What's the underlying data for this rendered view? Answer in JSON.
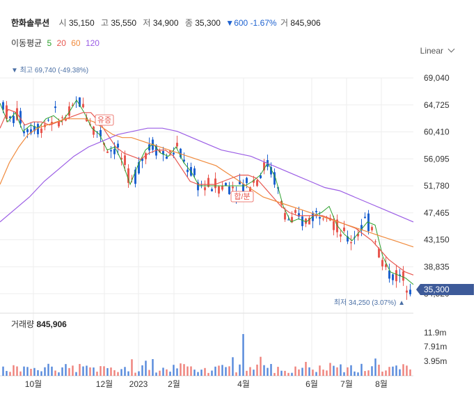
{
  "header": {
    "name": "한화솔루션",
    "open_label": "시",
    "open": "35,150",
    "high_label": "고",
    "high": "35,550",
    "low_label": "저",
    "low": "34,900",
    "close_label": "종",
    "close": "35,300",
    "change_icon": "triangle-down-icon",
    "change": "600",
    "change_pct": "-1.67%",
    "volume_label": "거",
    "volume": "845,906"
  },
  "moving_average": {
    "label": "이동평균",
    "periods": [
      {
        "label": "5",
        "color": "#2ca02c"
      },
      {
        "label": "20",
        "color": "#e8574f"
      },
      {
        "label": "60",
        "color": "#f08a3c"
      },
      {
        "label": "120",
        "color": "#9b5de5"
      }
    ]
  },
  "scale_selector": "Linear",
  "colors": {
    "up": "#e8574f",
    "down": "#1e62d0",
    "ma5": "#2ca02c",
    "ma20": "#e8574f",
    "ma60": "#f08a3c",
    "ma120": "#9b5de5",
    "current_badge": "#3d5a99",
    "grid": "#eeeeee"
  },
  "annotations": {
    "high_marker": "▼ 최고 69,740 (-49.38%)",
    "low_marker": "최저 34,250 (3.07%) ▲",
    "event1": "유증",
    "event2": "합/분",
    "current_price": "35,300"
  },
  "volume_panel": {
    "label": "거래량",
    "value": "845,906"
  },
  "chart_data": {
    "type": "candlestick",
    "price_axis": {
      "ticks": [
        "69,040",
        "64,725",
        "60,410",
        "56,095",
        "51,780",
        "47,465",
        "43,150",
        "38,835",
        "34,520"
      ],
      "ylim": [
        34520,
        69040
      ]
    },
    "volume_axis": {
      "ticks": [
        "11.9m",
        "7.91m",
        "3.95m"
      ]
    },
    "x_ticks": [
      "10월",
      "12월",
      "2023",
      "2월",
      "4월",
      "6월",
      "7월",
      "8월"
    ],
    "series": [
      {
        "name": "5",
        "values": [
          65000,
          62000,
          63500,
          60500,
          61500,
          61000,
          62500,
          63000,
          62000,
          63500,
          65500,
          63500,
          61000,
          60000,
          57500,
          58000,
          55500,
          52000,
          55000,
          57500,
          58500,
          57000,
          56500,
          58000,
          55500,
          54000,
          51780,
          51780,
          51780,
          51780,
          51780,
          51780,
          51780,
          52500,
          53500,
          55500,
          53000,
          48500,
          46000,
          46500,
          46000,
          47000,
          47500,
          48500,
          45500,
          44000,
          43000,
          44500,
          46000,
          45500,
          40500,
          38000,
          37500,
          37000,
          36000
        ]
      },
      {
        "name": "20",
        "values": [
          61000,
          64000,
          63500,
          61500,
          62000,
          62000,
          61500,
          62000,
          62500,
          63000,
          63500,
          63500,
          62000,
          60000,
          58000,
          57000,
          56500,
          56000,
          57000,
          57500,
          57500,
          56500,
          54500,
          52500,
          52000,
          52000,
          52000,
          52500,
          53000,
          53500,
          53500,
          53000,
          51500,
          50000,
          48500,
          47500,
          47000,
          47000,
          47000,
          47000,
          46500,
          46000,
          45500,
          45000,
          44000,
          43000,
          41500,
          40000,
          39000,
          38000,
          37500
        ]
      },
      {
        "name": "60",
        "values": [
          52000,
          55500,
          58000,
          60000,
          61000,
          61500,
          62000,
          62500,
          62500,
          62500,
          62000,
          61000,
          60000,
          59500,
          59500,
          59000,
          58500,
          58000,
          57500,
          57000,
          56500,
          56000,
          55500,
          55000,
          54000,
          53000,
          52000,
          51000,
          50000,
          49500,
          49000,
          48500,
          48000,
          47500,
          47000,
          46500,
          46000,
          45500,
          45000,
          44500,
          44000,
          43500,
          43000,
          42500,
          42000
        ]
      },
      {
        "name": "120",
        "values": [
          46000,
          48000,
          50000,
          52500,
          54500,
          56500,
          58000,
          59000,
          60000,
          60500,
          61000,
          61000,
          60500,
          59500,
          58500,
          57500,
          57000,
          56500,
          55500,
          54500,
          53500,
          52500,
          51500,
          51000,
          50000,
          49000,
          48000,
          47000,
          46000
        ]
      }
    ]
  }
}
